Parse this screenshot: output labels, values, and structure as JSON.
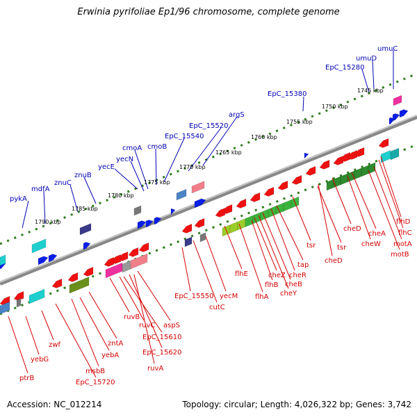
{
  "title": "Erwinia pyrifoliae Ep1/96 chromosome, complete genome",
  "accession": "Accession: NC_012214",
  "topology": "Topology: circular; Length: 4,026,322 bp; Genes: 3,742",
  "colors": {
    "label_above": "#0000b4",
    "label_below": "#d40000",
    "backbone": "#7a7a7a",
    "tick_dots": "#2e7d1e",
    "gene_blue": "#0a1ee6",
    "gene_red": "#ee1111",
    "gene_green": "#3aa52a",
    "gene_cyan": "#1fcfcf",
    "gene_magenta": "#ee2f9f",
    "gene_navy": "#3a3a8a",
    "gene_gray": "#777777"
  },
  "ticks": [
    "1745 kbp",
    "1750 kbp",
    "1755 kbp",
    "1760 kbp",
    "1765 kbp",
    "1770 kbp",
    "1775 kbp",
    "1780 kbp",
    "1785 kbp",
    "1790 kbp"
  ],
  "genes_above": [
    "umuC",
    "umuD",
    "EpC_15280",
    "EpC_15380",
    "argS",
    "EpC_15520",
    "EpC_15540",
    "cmoB",
    "cmoA",
    "yecN",
    "yecE",
    "znuB",
    "znuC",
    "mdfA",
    "pykA"
  ],
  "genes_below": [
    "flhD",
    "flhC",
    "motA",
    "motB",
    "cheA",
    "cheW",
    "cheD",
    "cheD",
    "tsr",
    "tsr",
    "tap",
    "cheR",
    "cheB",
    "cheY",
    "cheZ",
    "flhB",
    "flhA",
    "flhE",
    "yecM",
    "cutC",
    "EpC_15550",
    "aspS",
    "ruvA",
    "EpC_15620",
    "EpC_15610",
    "ruvC",
    "ruvB",
    "zntA",
    "yebA",
    "msbB",
    "EpC_15720",
    "zwf",
    "yebG",
    "ptrB"
  ]
}
